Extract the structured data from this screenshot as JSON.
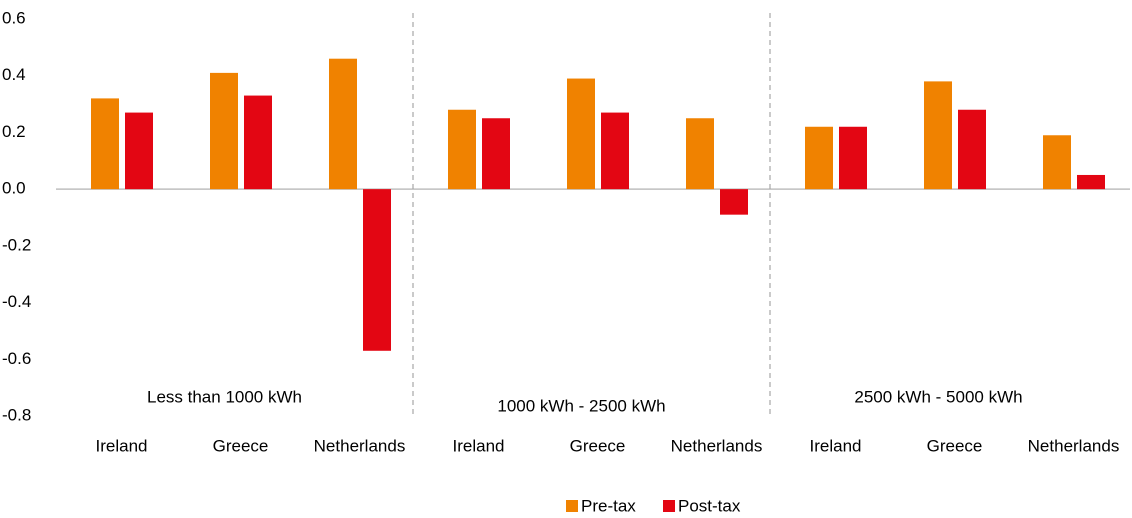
{
  "chart_data": {
    "type": "bar",
    "categories": [
      "Ireland",
      "Greece",
      "Netherlands",
      "Ireland",
      "Greece",
      "Netherlands",
      "Ireland",
      "Greece",
      "Netherlands"
    ],
    "group_labels": [
      "Less than 1000 kWh",
      "1000 kWh - 2500 kWh",
      "2500 kWh - 5000 kWh"
    ],
    "series": [
      {
        "name": "Pre-tax",
        "color": "#f08200",
        "values": [
          0.32,
          0.41,
          0.46,
          0.28,
          0.39,
          0.25,
          0.22,
          0.38,
          0.19
        ]
      },
      {
        "name": "Post-tax",
        "color": "#e30613",
        "values": [
          0.27,
          0.33,
          -0.57,
          0.25,
          0.27,
          -0.09,
          0.22,
          0.28,
          0.05
        ]
      }
    ],
    "ylim": [
      -0.8,
      0.6
    ],
    "yticks": [
      -0.8,
      -0.6,
      -0.4,
      -0.2,
      {
        "value": 0,
        "label": "0.0"
      },
      0.2,
      0.4,
      0.6
    ],
    "legend": "bottom"
  }
}
